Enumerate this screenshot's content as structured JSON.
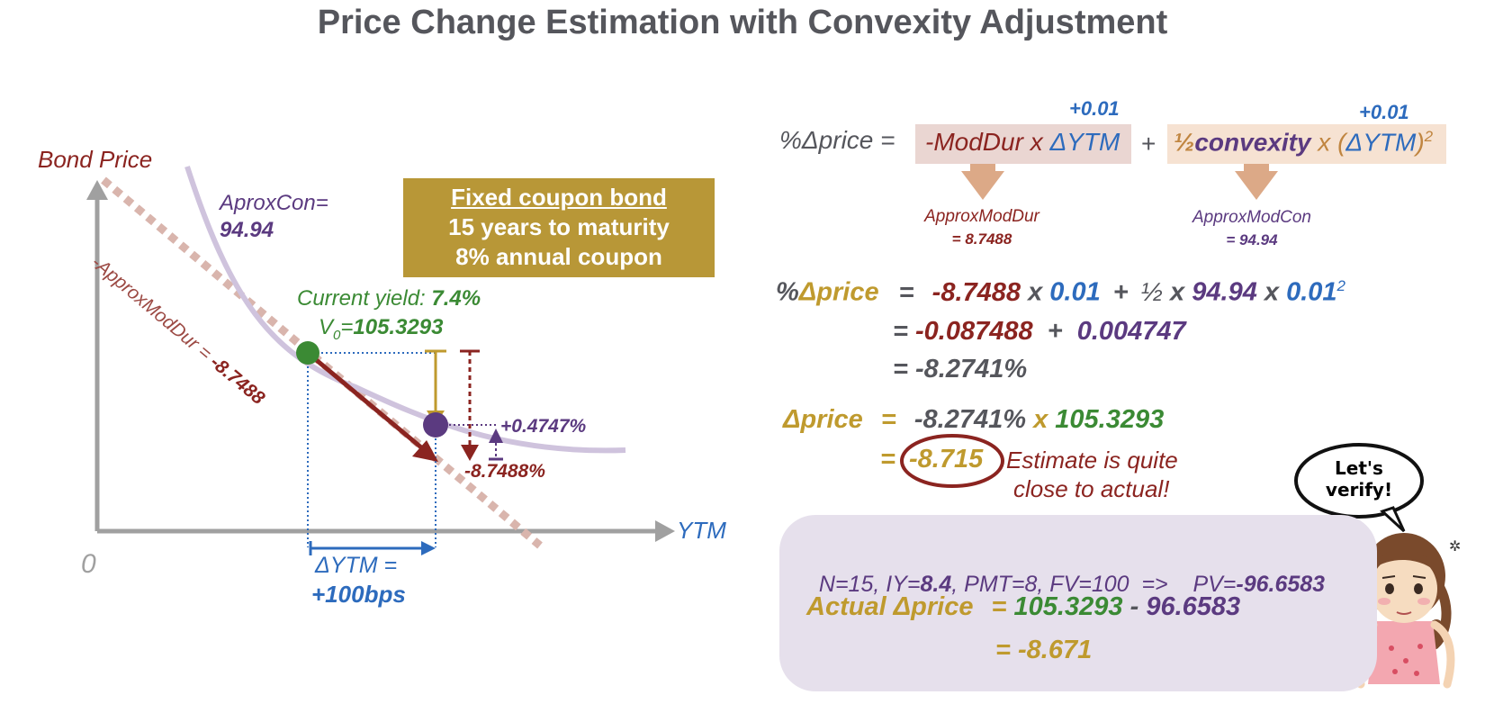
{
  "title": "Price Change Estimation with Convexity Adjustment",
  "colors": {
    "maroon": "#8b2420",
    "blue": "#2d6bbd",
    "purple": "#5b3a80",
    "green": "#3b8a34",
    "gold": "#bf9a2e",
    "gray": "#55565c"
  },
  "graph": {
    "y_axis_label": "Bond Price",
    "x_axis_label": "YTM",
    "origin_label": "0",
    "aprox_con_label": "AproxCon=",
    "aprox_con_value": "94.94",
    "tangent_label": "-ApproxModDur = ",
    "tangent_value": "-8.7488",
    "current_yield_label": "Current yield: ",
    "current_yield_value": "7.4%",
    "v0_label": "V",
    "v0_sub": "0",
    "v0_eq": "=",
    "v0_value": "105.3293",
    "duration_change": "-8.7488%",
    "convexity_change": "+0.4747%",
    "dytm_label": "ΔYTM =",
    "dytm_value": "+100bps"
  },
  "bond_box": {
    "line1": "Fixed coupon bond",
    "line2": "15 years to maturity",
    "line3": "8% annual coupon"
  },
  "formula": {
    "lhs": "%Δprice =",
    "term1_a": "-ModDur x ",
    "term1_b": "ΔYTM",
    "plus": "+",
    "term2_half": "½",
    "term2_conv": "convexity",
    "term2_x": " x (",
    "term2_dytm": "ΔYTM",
    "term2_close": ")",
    "term2_sq": "2",
    "inc1": "+0.01",
    "inc2": "+0.01",
    "approx_moddur_label": "ApproxModDur",
    "approx_moddur_value": "= 8.7488",
    "approx_modcon_label": "ApproxModCon",
    "approx_modcon_value": "= 94.94"
  },
  "calc": {
    "lhs_pct": "%",
    "lhs_word": "Δprice",
    "eq": "=",
    "moddur": "-8.7488",
    "x": "x",
    "dytm": "0.01",
    "plus": "+",
    "half": "½",
    "conv": "94.94",
    "dytm2": "0.01",
    "sq": "2",
    "line2_a": "-0.087488",
    "line2_b": "0.004747",
    "line3": "= -8.2741%",
    "dprice_label": "Δprice",
    "dprice_pct": "-8.2741%",
    "dprice_x": "x",
    "dprice_v0": "105.3293",
    "dprice_eq2": "=",
    "dprice_result": "-8.715",
    "note_line1": "Estimate is quite",
    "note_line2": "close to actual!"
  },
  "actual": {
    "line1_a": "N=15, IY=",
    "line1_iy": "8.4",
    "line1_b": ", PMT=8, FV=100  =>    PV=",
    "line1_pv": "-96.6583",
    "line2_label": "Actual Δprice",
    "line2_eq": "=",
    "line2_v0": "105.3293",
    "line2_minus": "-",
    "line2_pv": "96.6583",
    "line3": "= -8.671"
  },
  "bubble": {
    "line1": "Let's",
    "line2": "verify!"
  }
}
